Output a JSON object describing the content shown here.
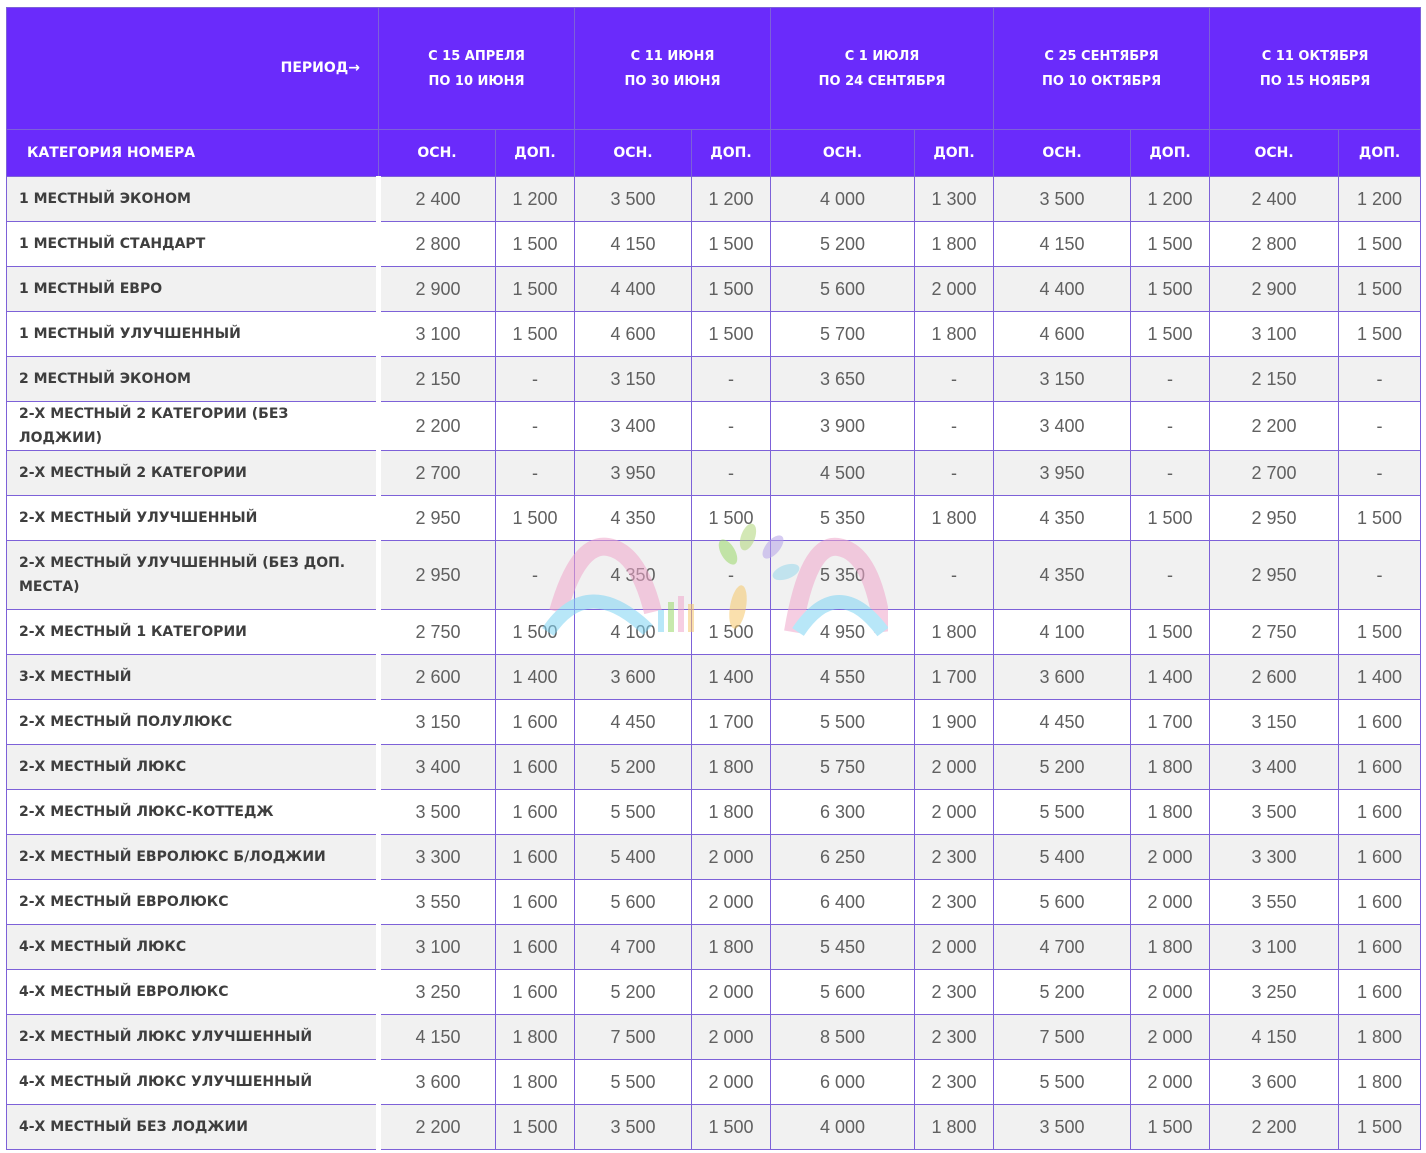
{
  "header": {
    "period_label": "ПЕРИОД→",
    "category_label": "КАТЕГОРИЯ НОМЕРА",
    "periods": [
      {
        "line1": "С 15 АПРЕЛЯ",
        "line2": "ПО 10 ИЮНЯ",
        "osn": "ОСН.",
        "dop": "ДОП."
      },
      {
        "line1": "С 11 ИЮНЯ",
        "line2": "ПО 30 ИЮНЯ",
        "osn": "ОСН.",
        "dop": "ДОП."
      },
      {
        "line1": "С 1 ИЮЛЯ",
        "line2": "ПО 24 СЕНТЯБРЯ",
        "osn": "ОСН.",
        "dop": "ДОП."
      },
      {
        "line1": "С 25 СЕНТЯБРЯ",
        "line2": "ПО 10 ОКТЯБРЯ",
        "osn": "ОСН.",
        "dop": "ДОП."
      },
      {
        "line1": "С 11 ОКТЯБРЯ",
        "line2": "ПО 15 НОЯБРЯ",
        "osn": "ОСН.",
        "dop": "ДОП."
      }
    ]
  },
  "rows": [
    {
      "name": "1 МЕСТНЫЙ ЭКОНОМ",
      "v": [
        "2 400",
        "1 200",
        "3 500",
        "1 200",
        "4 000",
        "1 300",
        "3 500",
        "1 200",
        "2 400",
        "1 200"
      ]
    },
    {
      "name": "1 МЕСТНЫЙ СТАНДАРТ",
      "v": [
        "2 800",
        "1 500",
        "4 150",
        "1 500",
        "5 200",
        "1 800",
        "4 150",
        "1 500",
        "2 800",
        "1 500"
      ]
    },
    {
      "name": "1 МЕСТНЫЙ ЕВРО",
      "v": [
        "2 900",
        "1 500",
        "4 400",
        "1 500",
        "5 600",
        "2 000",
        "4 400",
        "1 500",
        "2 900",
        "1 500"
      ]
    },
    {
      "name": "1 МЕСТНЫЙ УЛУЧШЕННЫЙ",
      "v": [
        "3 100",
        "1 500",
        "4 600",
        "1 500",
        "5 700",
        "1 800",
        "4 600",
        "1 500",
        "3 100",
        "1 500"
      ]
    },
    {
      "name": "2 МЕСТНЫЙ ЭКОНОМ",
      "v": [
        "2 150",
        "-",
        "3 150",
        "-",
        "3 650",
        "-",
        "3 150",
        "-",
        "2 150",
        "-"
      ]
    },
    {
      "name": "2-Х МЕСТНЫЙ 2 КАТЕГОРИИ (БЕЗ ЛОДЖИИ)",
      "v": [
        "2 200",
        "-",
        "3 400",
        "-",
        "3 900",
        "-",
        "3 400",
        "-",
        "2 200",
        "-"
      ]
    },
    {
      "name": "2-Х МЕСТНЫЙ 2 КАТЕГОРИИ",
      "v": [
        "2 700",
        "-",
        "3 950",
        "-",
        "4 500",
        "-",
        "3 950",
        "-",
        "2 700",
        "-"
      ]
    },
    {
      "name": "2-Х МЕСТНЫЙ УЛУЧШЕННЫЙ",
      "v": [
        "2 950",
        "1 500",
        "4 350",
        "1 500",
        "5 350",
        "1 800",
        "4 350",
        "1 500",
        "2 950",
        "1 500"
      ]
    },
    {
      "name": "2-Х МЕСТНЫЙ УЛУЧШЕННЫЙ (БЕЗ ДОП. МЕСТА)",
      "v": [
        "2 950",
        "-",
        "4 350",
        "-",
        "5 350",
        "-",
        "4 350",
        "-",
        "2 950",
        "-"
      ]
    },
    {
      "name": "2-Х МЕСТНЫЙ 1 КАТЕГОРИИ",
      "v": [
        "2 750",
        "1 500",
        "4 100",
        "1 500",
        "4 950",
        "1 800",
        "4 100",
        "1 500",
        "2 750",
        "1 500"
      ]
    },
    {
      "name": "3-Х МЕСТНЫЙ",
      "v": [
        "2 600",
        "1 400",
        "3 600",
        "1 400",
        "4 550",
        "1 700",
        "3 600",
        "1 400",
        "2 600",
        "1 400"
      ]
    },
    {
      "name": "2-Х МЕСТНЫЙ ПОЛУЛЮКС",
      "v": [
        "3 150",
        "1 600",
        "4 450",
        "1 700",
        "5 500",
        "1 900",
        "4 450",
        "1 700",
        "3 150",
        "1 600"
      ]
    },
    {
      "name": "2-Х МЕСТНЫЙ ЛЮКС",
      "v": [
        "3 400",
        "1 600",
        "5 200",
        "1 800",
        "5 750",
        "2 000",
        "5 200",
        "1 800",
        "3 400",
        "1 600"
      ]
    },
    {
      "name": "2-Х МЕСТНЫЙ ЛЮКС-КОТТЕДЖ",
      "v": [
        "3 500",
        "1 600",
        "5 500",
        "1 800",
        "6 300",
        "2 000",
        "5 500",
        "1 800",
        "3 500",
        "1 600"
      ]
    },
    {
      "name": "2-Х МЕСТНЫЙ ЕВРОЛЮКС Б/ЛОДЖИИ",
      "v": [
        "3 300",
        "1 600",
        "5 400",
        "2 000",
        "6 250",
        "2 300",
        "5 400",
        "2 000",
        "3 300",
        "1 600"
      ]
    },
    {
      "name": "2-Х МЕСТНЫЙ ЕВРОЛЮКС",
      "v": [
        "3 550",
        "1 600",
        "5 600",
        "2 000",
        "6 400",
        "2 300",
        "5 600",
        "2 000",
        "3 550",
        "1 600"
      ]
    },
    {
      "name": "4-Х МЕСТНЫЙ ЛЮКС",
      "v": [
        "3 100",
        "1 600",
        "4 700",
        "1 800",
        "5 450",
        "2 000",
        "4 700",
        "1 800",
        "3 100",
        "1 600"
      ]
    },
    {
      "name": "4-Х МЕСТНЫЙ ЕВРОЛЮКС",
      "v": [
        "3 250",
        "1 600",
        "5 200",
        "2 000",
        "5 600",
        "2 300",
        "5 200",
        "2 000",
        "3 250",
        "1 600"
      ]
    },
    {
      "name": "2-Х МЕСТНЫЙ ЛЮКС УЛУЧШЕННЫЙ",
      "v": [
        "4 150",
        "1 800",
        "7 500",
        "2 000",
        "8 500",
        "2 300",
        "7 500",
        "2 000",
        "4 150",
        "1 800"
      ]
    },
    {
      "name": "4-Х МЕСТНЫЙ ЛЮКС УЛУЧШЕННЫЙ",
      "v": [
        "3 600",
        "1 800",
        "5 500",
        "2 000",
        "6 000",
        "2 300",
        "5 500",
        "2 000",
        "3 600",
        "1 800"
      ]
    },
    {
      "name": "4-Х МЕСТНЫЙ БЕЗ ЛОДЖИИ",
      "v": [
        "2 200",
        "1 500",
        "3 500",
        "1 500",
        "4 000",
        "1 800",
        "3 500",
        "1 500",
        "2 200",
        "1 500"
      ]
    }
  ],
  "watermark": {
    "icon": "amigo-logo-icon"
  },
  "colors": {
    "header_bg": "#6a2bfb",
    "border": "#7d61d8",
    "row_alt": "#f1f1f1",
    "text": "#606060"
  }
}
